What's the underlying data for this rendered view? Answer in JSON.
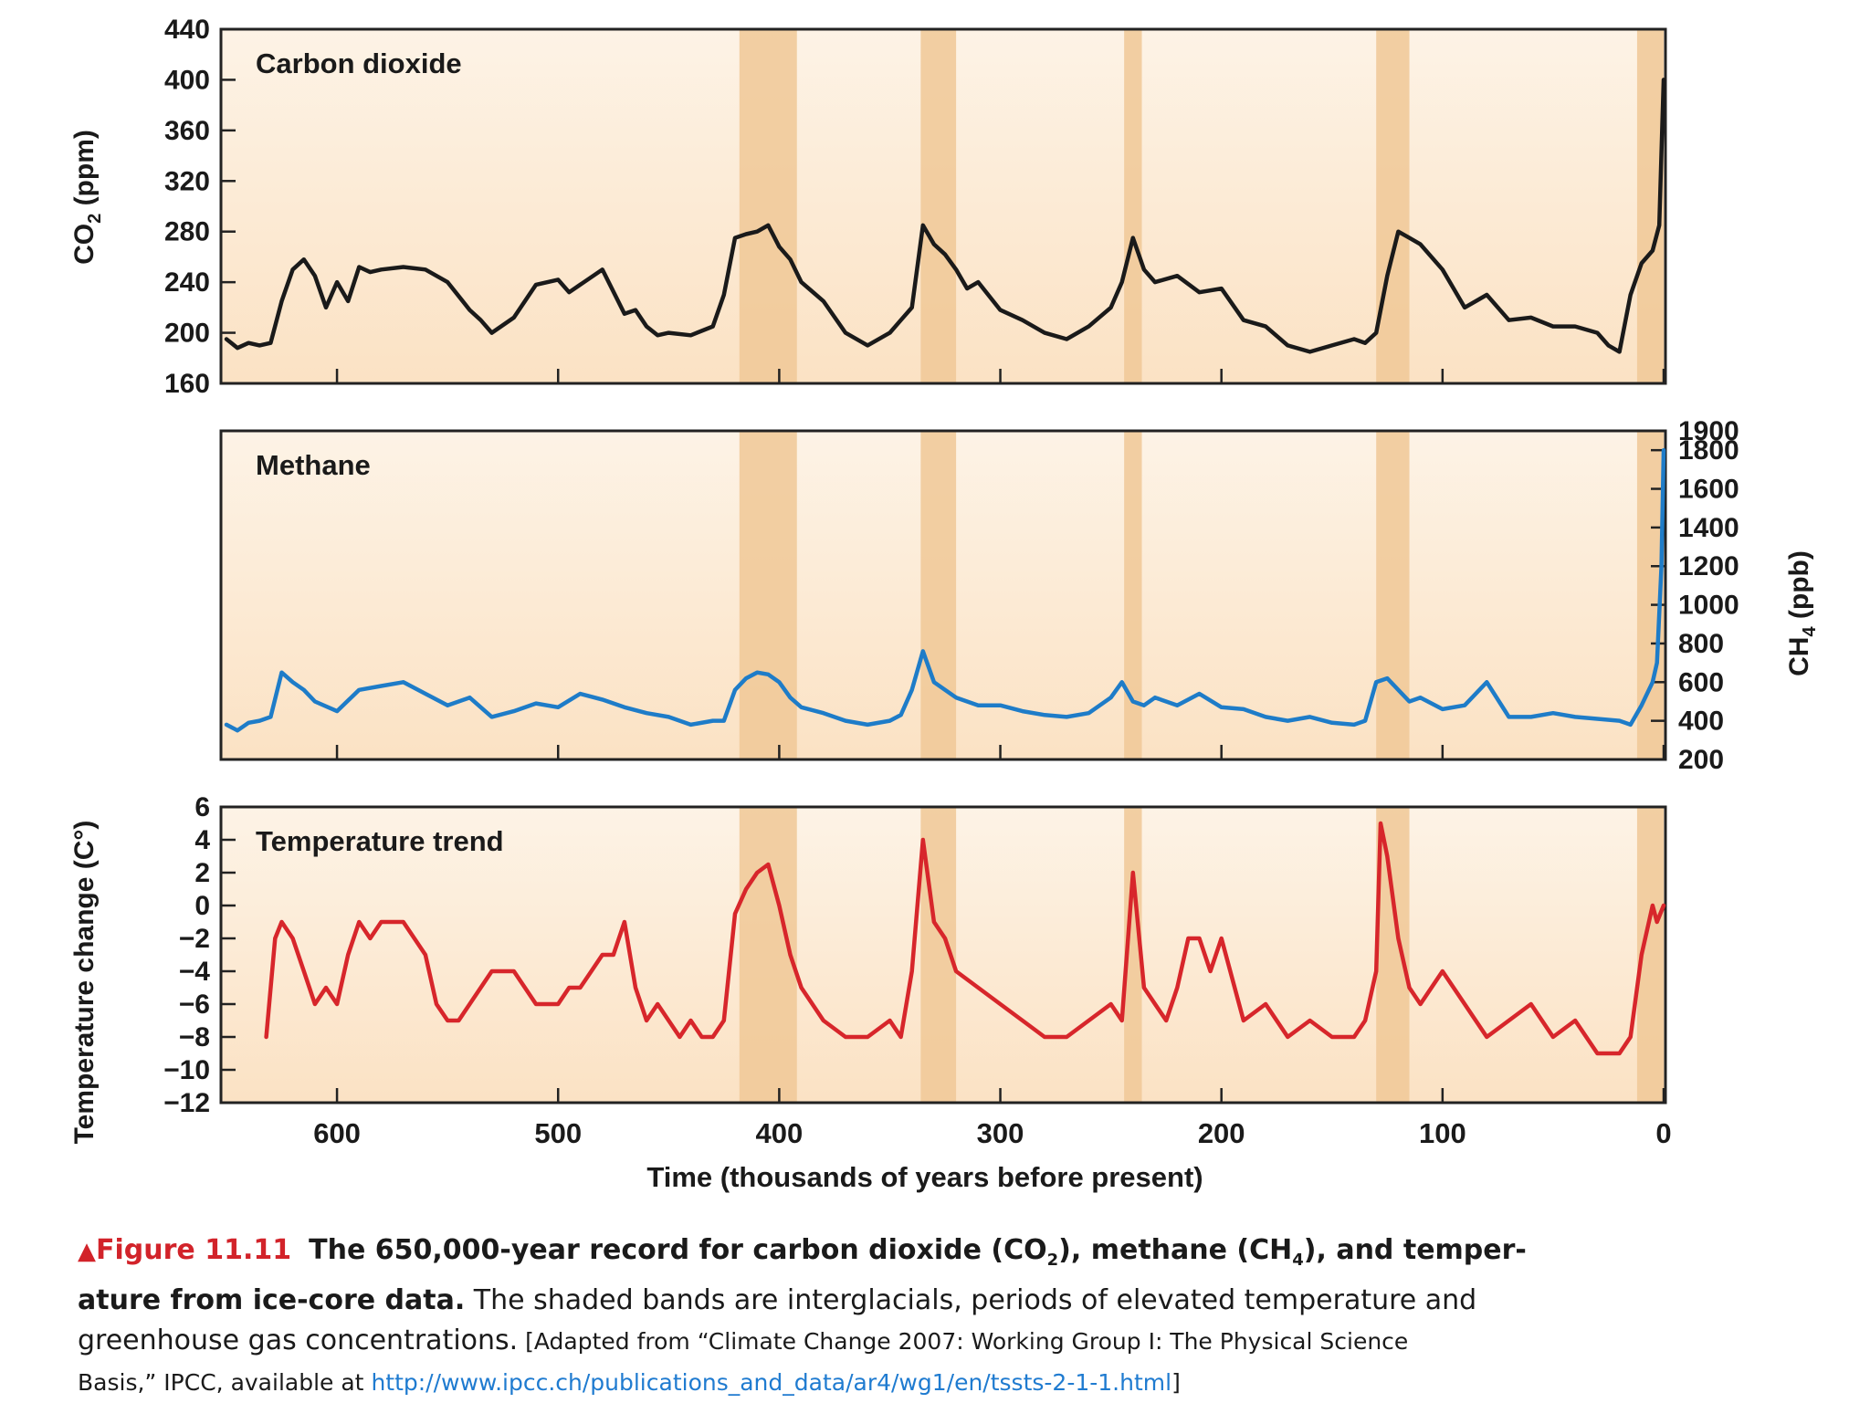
{
  "chart_data": [
    {
      "type": "line",
      "panel": "co2",
      "title": "Carbon dioxide",
      "ylabel_main": "CO",
      "ylabel_sub": "2",
      "ylabel_unit": " (ppm)",
      "ylim": [
        160,
        440
      ],
      "yticks": [
        160,
        200,
        240,
        280,
        320,
        360,
        400,
        440
      ],
      "xlim": [
        650,
        0
      ],
      "color": "#1a1a1a",
      "series": [
        {
          "x": [
            650,
            645,
            640,
            635,
            630,
            625,
            620,
            615,
            610,
            605,
            600,
            595,
            590,
            585,
            580,
            570,
            560,
            550,
            540,
            535,
            530,
            520,
            510,
            500,
            495,
            490,
            480,
            470,
            465,
            460,
            455,
            450,
            440,
            430,
            425,
            420,
            415,
            410,
            405,
            400,
            395,
            390,
            380,
            370,
            360,
            350,
            345,
            340,
            335,
            330,
            325,
            320,
            315,
            310,
            300,
            290,
            280,
            270,
            260,
            250,
            245,
            240,
            235,
            230,
            220,
            210,
            200,
            190,
            180,
            170,
            160,
            150,
            140,
            135,
            130,
            125,
            120,
            115,
            110,
            100,
            95,
            90,
            80,
            70,
            60,
            50,
            40,
            30,
            25,
            20,
            15,
            10,
            5,
            2,
            0
          ],
          "y": [
            195,
            188,
            192,
            190,
            192,
            225,
            250,
            258,
            245,
            220,
            240,
            225,
            252,
            248,
            250,
            252,
            250,
            240,
            218,
            210,
            200,
            212,
            238,
            242,
            232,
            238,
            250,
            215,
            218,
            205,
            198,
            200,
            198,
            205,
            230,
            275,
            278,
            280,
            285,
            268,
            258,
            240,
            225,
            200,
            190,
            200,
            210,
            220,
            285,
            270,
            262,
            250,
            235,
            240,
            218,
            210,
            200,
            195,
            205,
            220,
            240,
            275,
            250,
            240,
            245,
            232,
            235,
            210,
            205,
            190,
            185,
            190,
            195,
            192,
            200,
            245,
            280,
            275,
            270,
            250,
            235,
            220,
            230,
            210,
            212,
            205,
            205,
            200,
            190,
            185,
            230,
            255,
            265,
            285,
            400
          ]
        }
      ]
    },
    {
      "type": "line",
      "panel": "ch4",
      "title": "Methane",
      "ylabel_main": "CH",
      "ylabel_sub": "4",
      "ylabel_unit": " (ppb)",
      "ylim": [
        200,
        1900
      ],
      "yticks": [
        200,
        400,
        600,
        800,
        1000,
        1200,
        1400,
        1600,
        1800,
        1900
      ],
      "xlim": [
        650,
        0
      ],
      "color": "#1e7cc8",
      "series": [
        {
          "x": [
            650,
            645,
            640,
            635,
            630,
            625,
            620,
            615,
            610,
            600,
            590,
            580,
            570,
            560,
            550,
            540,
            530,
            520,
            510,
            500,
            490,
            480,
            470,
            460,
            450,
            440,
            430,
            425,
            420,
            415,
            410,
            405,
            400,
            395,
            390,
            380,
            370,
            360,
            350,
            345,
            340,
            335,
            330,
            320,
            310,
            300,
            290,
            280,
            270,
            260,
            250,
            245,
            240,
            235,
            230,
            220,
            210,
            200,
            190,
            180,
            170,
            160,
            150,
            140,
            135,
            130,
            125,
            120,
            115,
            110,
            100,
            90,
            80,
            70,
            60,
            50,
            40,
            30,
            20,
            15,
            10,
            5,
            3,
            1,
            0
          ],
          "y": [
            380,
            350,
            390,
            400,
            420,
            650,
            600,
            560,
            500,
            450,
            560,
            580,
            600,
            540,
            480,
            520,
            420,
            450,
            490,
            470,
            540,
            510,
            470,
            440,
            420,
            380,
            400,
            400,
            560,
            620,
            650,
            640,
            600,
            520,
            470,
            440,
            400,
            380,
            400,
            430,
            560,
            760,
            600,
            520,
            480,
            480,
            450,
            430,
            420,
            440,
            520,
            600,
            500,
            480,
            520,
            480,
            540,
            470,
            460,
            420,
            400,
            420,
            390,
            380,
            400,
            600,
            620,
            560,
            500,
            520,
            460,
            480,
            600,
            420,
            420,
            440,
            420,
            410,
            400,
            380,
            480,
            600,
            700,
            1200,
            1800
          ]
        }
      ]
    },
    {
      "type": "line",
      "panel": "temp",
      "title": "Temperature trend",
      "ylabel": "Temperature change (C°)",
      "ylim": [
        -12,
        6
      ],
      "yticks": [
        6,
        4,
        2,
        0,
        -2,
        -4,
        -6,
        -8,
        -10,
        -12
      ],
      "xlim": [
        650,
        0
      ],
      "xticks": [
        600,
        500,
        400,
        300,
        200,
        100,
        0
      ],
      "xlabel": "Time (thousands of years before present)",
      "color": "#d7262b",
      "series": [
        {
          "x": [
            632,
            628,
            625,
            620,
            615,
            610,
            605,
            600,
            595,
            590,
            585,
            580,
            575,
            570,
            565,
            560,
            555,
            550,
            545,
            540,
            535,
            530,
            520,
            510,
            500,
            495,
            490,
            485,
            480,
            475,
            470,
            465,
            460,
            455,
            450,
            445,
            440,
            435,
            430,
            425,
            420,
            415,
            410,
            405,
            400,
            395,
            390,
            385,
            380,
            370,
            360,
            350,
            345,
            340,
            335,
            330,
            325,
            320,
            310,
            300,
            290,
            280,
            270,
            260,
            250,
            245,
            240,
            235,
            230,
            225,
            220,
            215,
            210,
            205,
            200,
            190,
            180,
            170,
            160,
            150,
            140,
            135,
            130,
            128,
            125,
            120,
            115,
            110,
            105,
            100,
            90,
            80,
            70,
            60,
            50,
            40,
            30,
            20,
            15,
            10,
            5,
            3,
            0
          ],
          "y": [
            -8,
            -2,
            -1,
            -2,
            -4,
            -6,
            -5,
            -6,
            -3,
            -1,
            -2,
            -1,
            -1,
            -1,
            -2,
            -3,
            -6,
            -7,
            -7,
            -6,
            -5,
            -4,
            -4,
            -6,
            -6,
            -5,
            -5,
            -4,
            -3,
            -3,
            -1,
            -5,
            -7,
            -6,
            -7,
            -8,
            -7,
            -8,
            -8,
            -7,
            -0.5,
            1,
            2,
            2.5,
            0,
            -3,
            -5,
            -6,
            -7,
            -8,
            -8,
            -7,
            -8,
            -4,
            4,
            -1,
            -2,
            -4,
            -5,
            -6,
            -7,
            -8,
            -8,
            -7,
            -6,
            -7,
            2,
            -5,
            -6,
            -7,
            -5,
            -2,
            -2,
            -4,
            -2,
            -7,
            -6,
            -8,
            -7,
            -8,
            -8,
            -7,
            -4,
            5,
            3,
            -2,
            -5,
            -6,
            -5,
            -4,
            -6,
            -8,
            -7,
            -6,
            -8,
            -7,
            -9,
            -9,
            -8,
            -3,
            0,
            -1,
            0
          ]
        }
      ]
    }
  ],
  "interglacial_bands": [
    [
      418,
      392
    ],
    [
      336,
      320
    ],
    [
      244,
      236
    ],
    [
      130,
      115
    ],
    [
      12,
      0
    ]
  ],
  "colors": {
    "panel_bg": "#fbe3c7",
    "band": "#f0c896",
    "co2": "#1a1a1a",
    "ch4": "#1e7cc8",
    "temp": "#d7262b",
    "caption_red": "#d2232a",
    "link": "#1f7bd0"
  },
  "caption": {
    "figure_label": "Figure 11.11",
    "line1_bold": "The 650,000-year record for carbon dioxide (CO",
    "sub_2": "2",
    "line1_mid": "), methane (CH",
    "sub_4": "4",
    "line1_end": "), and temper-",
    "line2_bold": "ature from ice-core data.",
    "line2_rest": " The shaded bands are interglacials, periods of elevated temperature and",
    "line3": "greenhouse gas concentrations.",
    "line3_small": " [Adapted from “Climate Change 2007: Working Group I: The Physical Science",
    "line4_small": "Basis,” IPCC, available at ",
    "url": "http://www.ipcc.ch/publications_and_data/ar4/wg1/en/tssts-2-1-1.html",
    "close": "]"
  }
}
